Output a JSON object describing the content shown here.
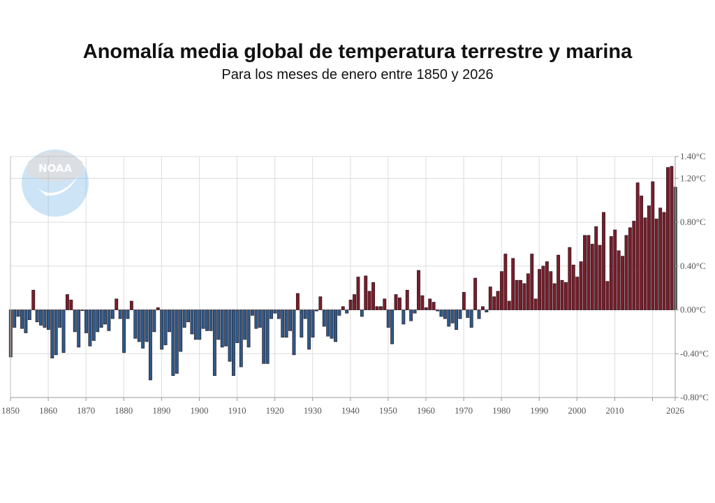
{
  "chart_data": {
    "type": "bar",
    "title": "Anomalía media global de temperatura terrestre y marina",
    "subtitle": "Para los meses de enero entre 1850 y 2026",
    "xlabel": "",
    "ylabel": "",
    "x_start": 1850,
    "x_end": 2026,
    "ylim": [
      -0.8,
      1.4
    ],
    "y_ticks": [
      {
        "value": 1.4,
        "label": "1.40°C"
      },
      {
        "value": 1.2,
        "label": "1.20°C"
      },
      {
        "value": 0.8,
        "label": "0.80°C"
      },
      {
        "value": 0.4,
        "label": "0.40°C"
      },
      {
        "value": 0.0,
        "label": "0.00°C"
      },
      {
        "value": -0.4,
        "label": "-0.40°C"
      },
      {
        "value": -0.8,
        "label": "-0.80°C"
      }
    ],
    "x_ticks": [
      {
        "value": 1850,
        "label": "1850"
      },
      {
        "value": 1860,
        "label": "1860"
      },
      {
        "value": 1870,
        "label": "1870"
      },
      {
        "value": 1880,
        "label": "1880"
      },
      {
        "value": 1890,
        "label": "1890"
      },
      {
        "value": 1900,
        "label": "1900"
      },
      {
        "value": 1910,
        "label": "1910"
      },
      {
        "value": 1920,
        "label": "1920"
      },
      {
        "value": 1930,
        "label": "1930"
      },
      {
        "value": 1940,
        "label": "1940"
      },
      {
        "value": 1950,
        "label": "1950"
      },
      {
        "value": 1960,
        "label": "1960"
      },
      {
        "value": 1970,
        "label": "1970"
      },
      {
        "value": 1980,
        "label": "1980"
      },
      {
        "value": 1990,
        "label": "1990"
      },
      {
        "value": 2000,
        "label": "2000"
      },
      {
        "value": 2010,
        "label": "2010"
      },
      {
        "value": 2020,
        "label": ""
      },
      {
        "value": 2026,
        "label": "2026"
      }
    ],
    "grid": true,
    "y_axis_side": "right",
    "colors": {
      "positive": "#7a1c2b",
      "negative": "#2d5a8c",
      "endpoint": "#555555",
      "border": "#2a1a1e"
    },
    "values": [
      -0.43,
      -0.16,
      -0.06,
      -0.17,
      -0.21,
      -0.09,
      0.18,
      -0.11,
      -0.14,
      -0.16,
      -0.18,
      -0.44,
      -0.41,
      -0.16,
      -0.39,
      0.14,
      0.09,
      -0.2,
      -0.34,
      0.0,
      -0.21,
      -0.33,
      -0.28,
      -0.2,
      -0.16,
      -0.13,
      -0.19,
      -0.08,
      0.1,
      -0.08,
      -0.39,
      -0.08,
      0.08,
      -0.26,
      -0.29,
      -0.35,
      -0.29,
      -0.64,
      -0.2,
      0.02,
      -0.36,
      -0.32,
      -0.2,
      -0.6,
      -0.58,
      -0.38,
      -0.16,
      -0.11,
      -0.22,
      -0.27,
      -0.27,
      -0.17,
      -0.19,
      -0.19,
      -0.6,
      -0.27,
      -0.34,
      -0.33,
      -0.47,
      -0.6,
      -0.3,
      -0.52,
      -0.27,
      -0.34,
      -0.05,
      -0.17,
      -0.16,
      -0.49,
      -0.49,
      -0.08,
      -0.03,
      -0.08,
      -0.25,
      -0.25,
      -0.19,
      -0.41,
      0.15,
      -0.25,
      -0.08,
      -0.36,
      -0.25,
      -0.01,
      0.12,
      -0.15,
      -0.24,
      -0.26,
      -0.29,
      -0.05,
      0.03,
      -0.03,
      0.09,
      0.14,
      0.3,
      -0.06,
      0.31,
      0.17,
      0.25,
      0.03,
      0.03,
      0.1,
      -0.16,
      -0.31,
      0.14,
      0.11,
      -0.13,
      0.18,
      -0.1,
      -0.03,
      0.36,
      0.13,
      0.02,
      0.1,
      0.07,
      -0.01,
      -0.06,
      -0.08,
      -0.15,
      -0.12,
      -0.18,
      -0.08,
      0.16,
      -0.07,
      -0.16,
      0.29,
      -0.08,
      0.03,
      -0.02,
      0.21,
      0.12,
      0.17,
      0.35,
      0.51,
      0.08,
      0.47,
      0.27,
      0.27,
      0.24,
      0.33,
      0.51,
      0.1,
      0.37,
      0.4,
      0.44,
      0.35,
      0.24,
      0.5,
      0.27,
      0.25,
      0.57,
      0.41,
      0.3,
      0.44,
      0.68,
      0.68,
      0.6,
      0.76,
      0.59,
      0.89,
      0.26,
      0.67,
      0.73,
      0.54,
      0.49,
      0.68,
      0.75,
      0.81,
      1.16,
      1.04,
      0.84,
      0.95,
      1.17,
      0.83,
      0.93,
      0.89,
      1.3,
      1.31,
      1.12
    ]
  },
  "logo": {
    "text": "NOAA"
  }
}
